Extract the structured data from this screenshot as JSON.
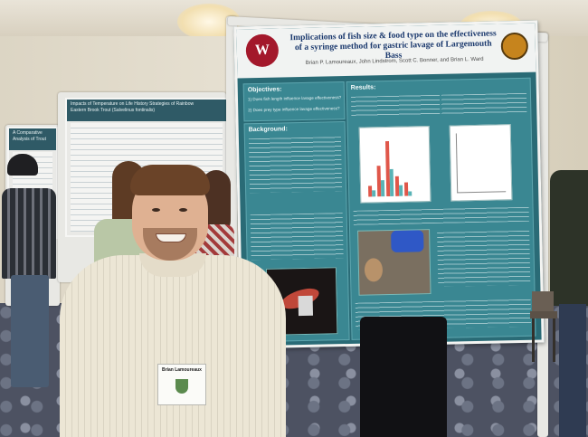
{
  "poster": {
    "title": "Implications of fish size & food type on the effectiveness of a syringe method for gastric lavage of Largemouth Bass",
    "authors": "Brian P. Lamoureaux, John Lindstrom, Scott C. Bonner, and Brian L. Ward",
    "logo_left_glyph": "W",
    "objectives_heading": "Objectives:",
    "objective_1": "1)  Does fish length influence lavage effectiveness?",
    "objective_2": "2)  Does prey type influence lavage effectiveness?",
    "background_heading": "Background:",
    "results_heading": "Results:"
  },
  "neighbor_poster": {
    "title": "Impacts of Temperature on Life History Strategies of Rainbow",
    "subtitle": "Eastern Brook Trout (Salvelinus fontinalis)"
  },
  "far_poster": {
    "title": "A Comparative Analysis of Trout"
  },
  "badge": {
    "name": "Brian Lamoureaux"
  },
  "colors": {
    "poster_teal": "#2a6b76",
    "title_navy": "#1c3a6e",
    "wsu_crimson": "#a3182b"
  },
  "histogram": {
    "series": [
      {
        "color": "#e0574a",
        "values": [
          0.18,
          0.52,
          0.92,
          0.34,
          0.22
        ]
      },
      {
        "color": "#59b3b6",
        "values": [
          0.1,
          0.28,
          0.46,
          0.18,
          0.08
        ]
      }
    ]
  }
}
